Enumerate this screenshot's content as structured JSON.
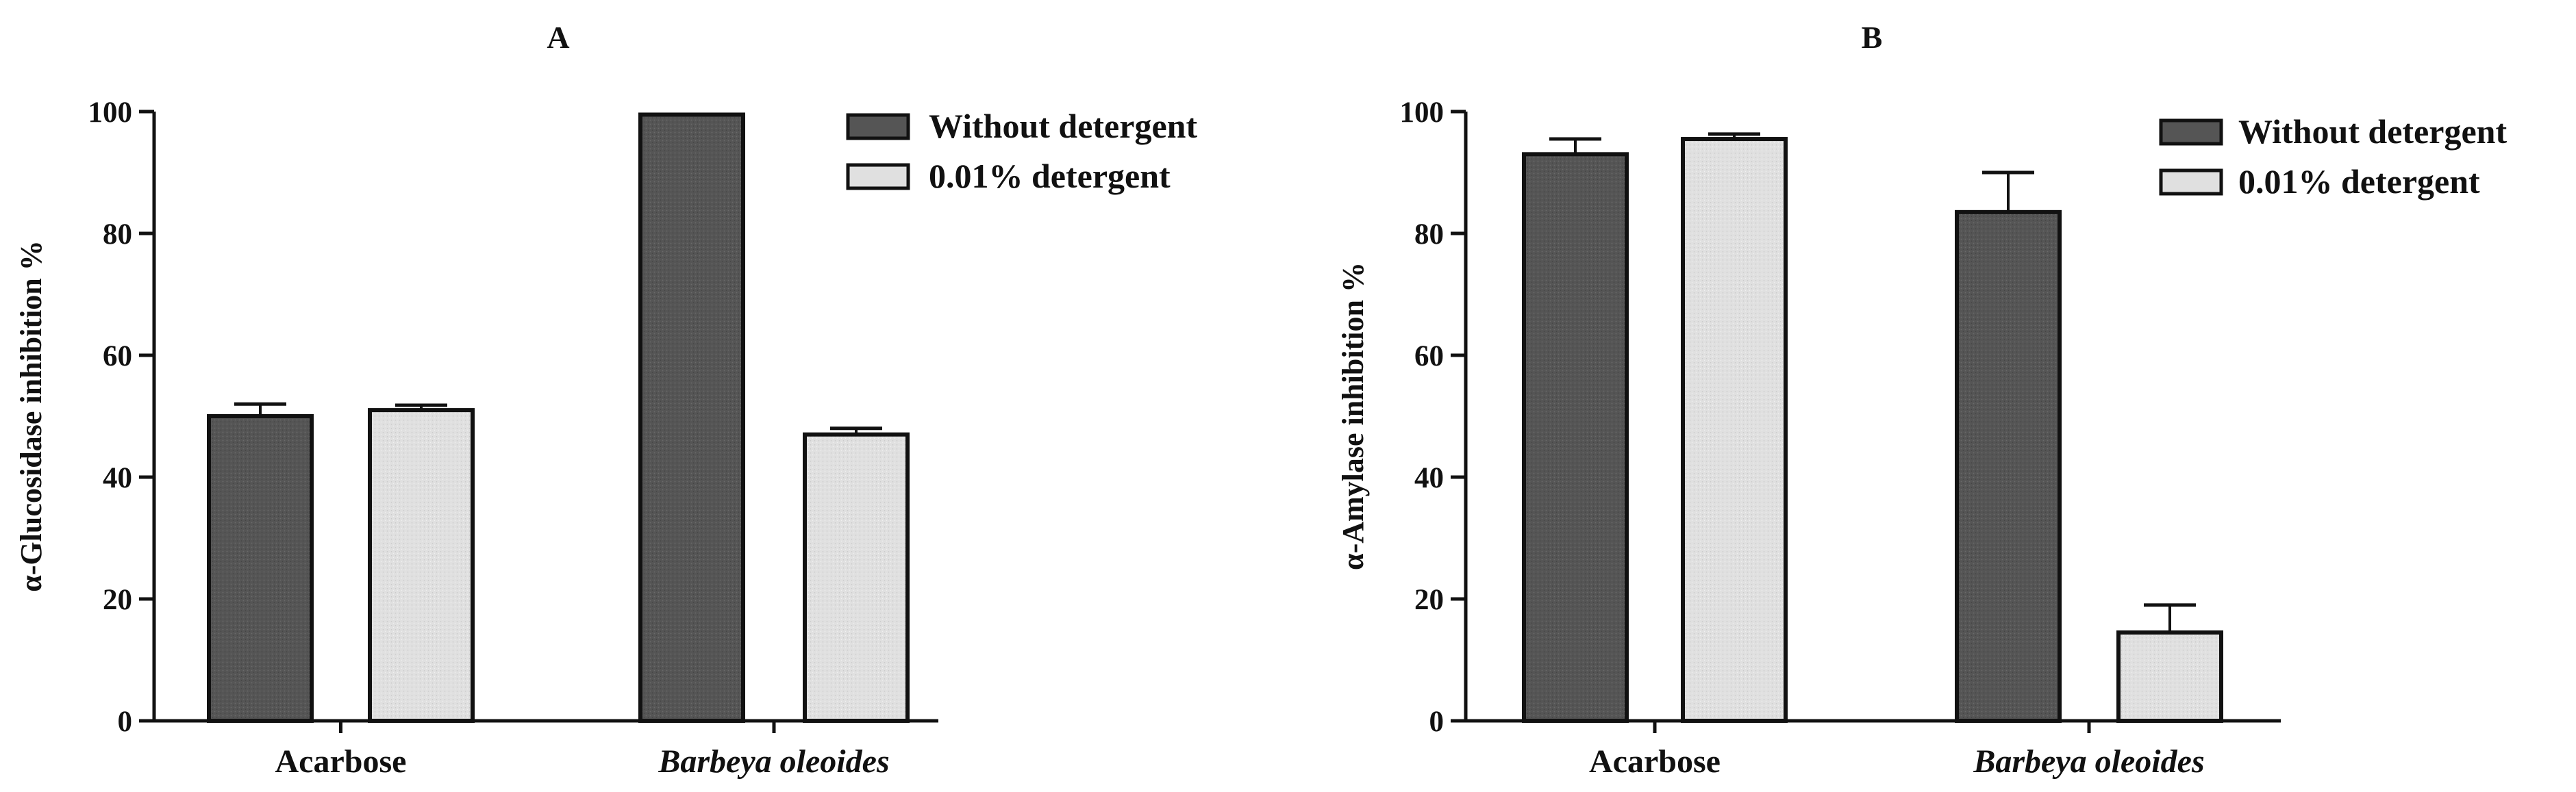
{
  "colors": {
    "without_detergent": "#555555",
    "detergent": "#e0e0e0",
    "axis": "#111111"
  },
  "chart_data": [
    {
      "type": "bar",
      "title": "A",
      "xlabel": "",
      "ylabel": "α-Glucosidase inhibition %",
      "categories": [
        "Acarbose",
        "Barbeya oleoides"
      ],
      "category_italic": [
        false,
        true
      ],
      "ylim": [
        0,
        100
      ],
      "yticks": [
        0,
        20,
        40,
        60,
        80,
        100
      ],
      "grid": false,
      "legend_position": "top-right",
      "series": [
        {
          "name": "Without detergent",
          "values": [
            50,
            99.5
          ],
          "errors": [
            2,
            0
          ]
        },
        {
          "name": "0.01% detergent",
          "values": [
            51,
            47
          ],
          "errors": [
            0.8,
            1
          ]
        }
      ]
    },
    {
      "type": "bar",
      "title": "B",
      "xlabel": "",
      "ylabel": "α-Amylase inhibition %",
      "categories": [
        "Acarbose",
        "Barbeya oleoides"
      ],
      "category_italic": [
        false,
        true
      ],
      "ylim": [
        0,
        100
      ],
      "yticks": [
        0,
        20,
        40,
        60,
        80,
        100
      ],
      "grid": false,
      "legend_position": "top-right",
      "series": [
        {
          "name": "Without detergent",
          "values": [
            93,
            83.5
          ],
          "errors": [
            2.5,
            6.5
          ]
        },
        {
          "name": "0.01% detergent",
          "values": [
            95.5,
            14.5
          ],
          "errors": [
            0.8,
            4.5
          ]
        }
      ]
    }
  ]
}
